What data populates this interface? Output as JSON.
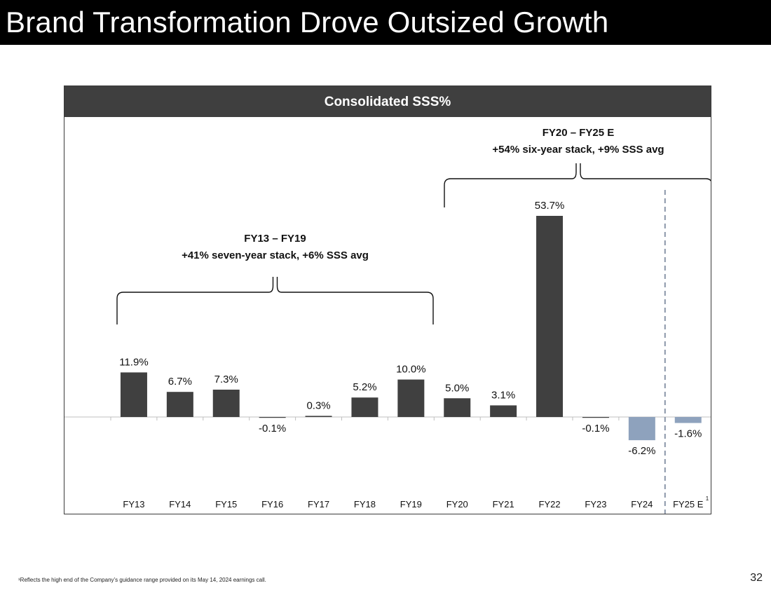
{
  "slide": {
    "title": "Brand Transformation Drove Outsized Growth",
    "page_number": "32",
    "footnote": "¹Reflects the high end of the Company’s guidance range provided on its May 14, 2024 earnings call."
  },
  "colors": {
    "actual_bar": "#404040",
    "estimate_bar": "#8ea2bd",
    "header_bg": "#3f3f3f",
    "divider": "#8a96a8"
  },
  "chart_data": {
    "type": "bar",
    "title": "Consolidated SSS%",
    "categories": [
      "FY13",
      "FY14",
      "FY15",
      "FY16",
      "FY17",
      "FY18",
      "FY19",
      "FY20",
      "FY21",
      "FY22",
      "FY23",
      "FY24",
      "FY25 E"
    ],
    "values": [
      11.9,
      6.7,
      7.3,
      -0.1,
      0.3,
      5.2,
      10.0,
      5.0,
      3.1,
      53.7,
      -0.1,
      -6.2,
      -1.6
    ],
    "labels": [
      "11.9%",
      "6.7%",
      "7.3%",
      "-0.1%",
      "0.3%",
      "5.2%",
      "10.0%",
      "5.0%",
      "3.1%",
      "53.7%",
      "-0.1%",
      "-6.2%",
      "-1.6%"
    ],
    "bar_style": [
      "actual",
      "actual",
      "actual",
      "actual",
      "actual",
      "actual",
      "actual",
      "actual",
      "actual",
      "actual",
      "actual",
      "estimate",
      "estimate"
    ],
    "category_superscripts": {
      "FY25 E": "1"
    },
    "unit": "%",
    "xlabel": "",
    "ylabel": "",
    "grid": false,
    "annotations": [
      {
        "span": [
          "FY13",
          "FY19"
        ],
        "line1": "FY13 – FY19",
        "line2": "+41% seven-year stack, +6% SSS avg"
      },
      {
        "span": [
          "FY20",
          "FY25 E"
        ],
        "line1": "FY20 – FY25 E",
        "line2": "+54% six-year stack, +9% SSS avg"
      }
    ],
    "divider_between": [
      "FY24",
      "FY25 E"
    ]
  }
}
